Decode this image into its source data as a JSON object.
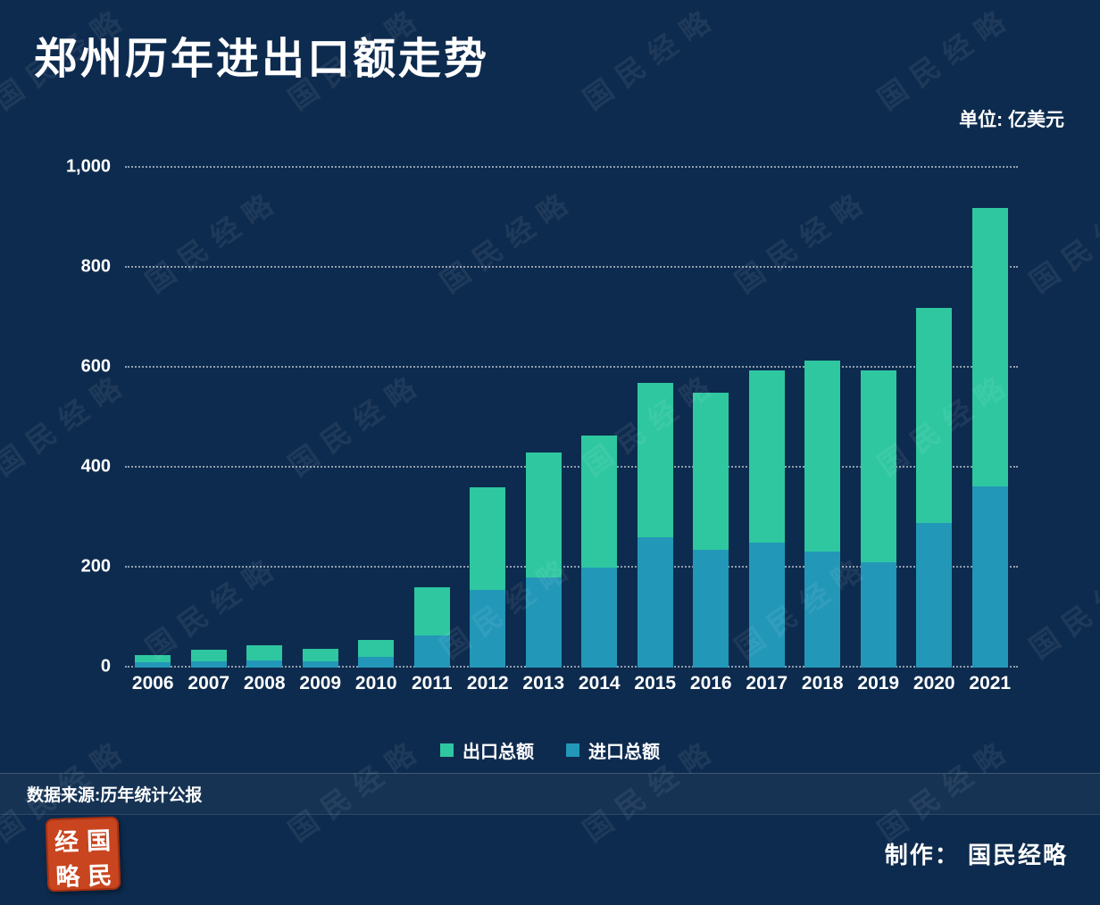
{
  "title": "郑州历年进出口额走势",
  "unit": "单位: 亿美元",
  "source": "数据来源:历年统计公报",
  "credit": "制作： 国民经略",
  "watermark": "国民经略",
  "seal": {
    "chars": [
      "经",
      "国",
      "略",
      "民"
    ],
    "color": "#c8451f"
  },
  "colors": {
    "background": "#0d2b4e",
    "export_green": "#2ec7a0",
    "import_blue": "#2397b8",
    "gridline": "rgba(255,255,255,0.55)"
  },
  "chart_data": {
    "type": "bar",
    "stacked": true,
    "title": "郑州历年进出口额走势",
    "unit": "亿美元",
    "categories": [
      "2006",
      "2007",
      "2008",
      "2009",
      "2010",
      "2011",
      "2012",
      "2013",
      "2014",
      "2015",
      "2016",
      "2017",
      "2018",
      "2019",
      "2020",
      "2021"
    ],
    "series": [
      {
        "key": "export",
        "name": "出口总额",
        "color": "#2ec7a0",
        "values": [
          15,
          23,
          30,
          25,
          33,
          95,
          205,
          250,
          265,
          310,
          315,
          345,
          383,
          385,
          430,
          558
        ]
      },
      {
        "key": "import",
        "name": "进口总额",
        "color": "#2397b8",
        "values": [
          10,
          12,
          15,
          13,
          22,
          65,
          155,
          180,
          200,
          260,
          235,
          250,
          232,
          210,
          290,
          362
        ]
      }
    ],
    "totals": [
      25,
      35,
      45,
      38,
      55,
      160,
      360,
      430,
      465,
      570,
      550,
      595,
      615,
      595,
      720,
      920
    ],
    "ylim": [
      0,
      1000
    ],
    "yticks": [
      0,
      200,
      400,
      600,
      800,
      1000
    ],
    "ytick_labels": [
      "0",
      "200",
      "400",
      "600",
      "800",
      "1,000"
    ],
    "grid": "dotted horizontal",
    "legend_position": "bottom-center"
  }
}
